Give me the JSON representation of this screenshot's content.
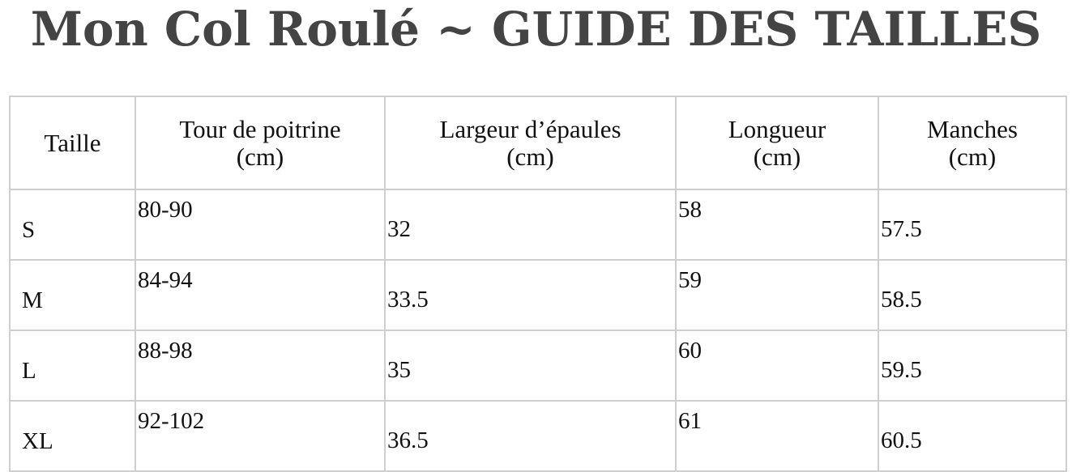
{
  "title": "Mon Col Roulé ~ GUIDE DES TAILLES",
  "table": {
    "headers": [
      {
        "line1": "Taille",
        "line2": ""
      },
      {
        "line1": "Tour de poitrine",
        "line2": "(cm)"
      },
      {
        "line1": "Largeur d’épaules",
        "line2": "(cm)"
      },
      {
        "line1": "Longueur",
        "line2": "(cm)"
      },
      {
        "line1": "Manches",
        "line2": "(cm)"
      }
    ],
    "rows": [
      [
        "S",
        "80-90",
        "32",
        "58",
        "57.5"
      ],
      [
        "M",
        "84-94",
        "33.5",
        "59",
        "58.5"
      ],
      [
        "L",
        "88-98",
        "35",
        "60",
        "59.5"
      ],
      [
        "XL",
        "92-102",
        "36.5",
        "61",
        "60.5"
      ]
    ]
  }
}
